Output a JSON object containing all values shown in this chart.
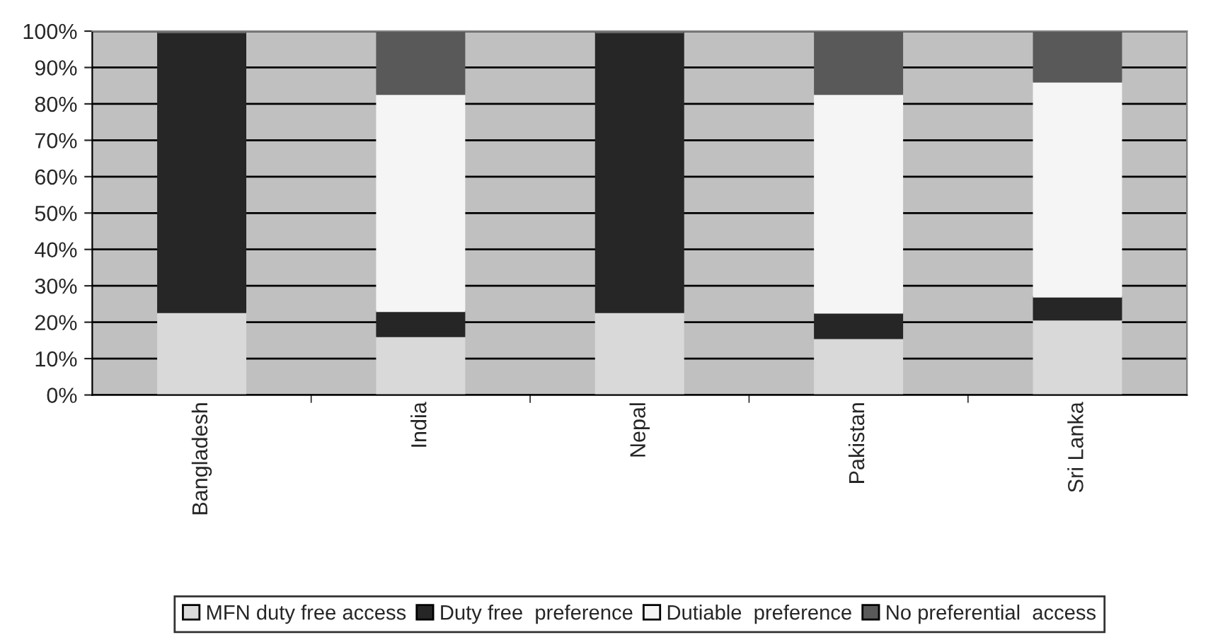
{
  "chart_data": {
    "type": "bar",
    "stacked": true,
    "categories": [
      "Bangladesh",
      "India",
      "Nepal",
      "Pakistan",
      "Sri Lanka"
    ],
    "series": [
      {
        "name": "MFN duty free access",
        "color": "#d9d9d9",
        "values": [
          22.7,
          16.1,
          22.7,
          15.6,
          20.7
        ]
      },
      {
        "name": "Duty free  preference",
        "color": "#262626",
        "values": [
          77.0,
          6.9,
          77.0,
          7.0,
          6.3
        ]
      },
      {
        "name": "Dutiable  preference",
        "color": "#f5f5f5",
        "values": [
          0,
          59.7,
          0,
          60.1,
          59.1
        ]
      },
      {
        "name": "No preferential  access",
        "color": "#595959",
        "values": [
          0.3,
          17.3,
          0.3,
          17.3,
          13.9
        ]
      }
    ],
    "ylim": [
      0,
      100
    ],
    "yticks": [
      {
        "value": 0,
        "label": "0%"
      },
      {
        "value": 10,
        "label": "10%"
      },
      {
        "value": 20,
        "label": "20%"
      },
      {
        "value": 30,
        "label": "30%"
      },
      {
        "value": 40,
        "label": "40%"
      },
      {
        "value": 50,
        "label": "50%"
      },
      {
        "value": 60,
        "label": "60%"
      },
      {
        "value": 70,
        "label": "70%"
      },
      {
        "value": 80,
        "label": "80%"
      },
      {
        "value": 90,
        "label": "90%"
      },
      {
        "value": 100,
        "label": "100%"
      }
    ],
    "grid": "y",
    "legend": "bottom"
  }
}
